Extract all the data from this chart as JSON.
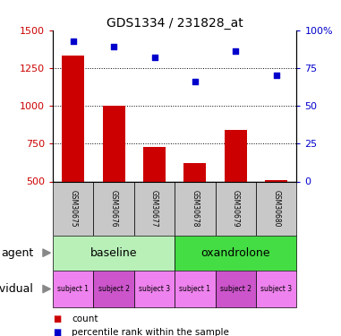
{
  "title": "GDS1334 / 231828_at",
  "samples": [
    "GSM30675",
    "GSM30676",
    "GSM30677",
    "GSM30678",
    "GSM30679",
    "GSM30680"
  ],
  "bar_values": [
    1330,
    1000,
    730,
    620,
    840,
    510
  ],
  "scatter_values": [
    93,
    89,
    82,
    66,
    86,
    70
  ],
  "bar_color": "#cc0000",
  "scatter_color": "#0000cc",
  "ylim_left": [
    500,
    1500
  ],
  "ylim_right": [
    0,
    100
  ],
  "yticks_left": [
    500,
    750,
    1000,
    1250,
    1500
  ],
  "yticks_right": [
    0,
    25,
    50,
    75,
    100
  ],
  "grid_values": [
    750,
    1000,
    1250
  ],
  "agent_groups": [
    {
      "label": "baseline",
      "start": 0,
      "end": 3,
      "color": "#b8f0b8"
    },
    {
      "label": "oxandrolone",
      "start": 3,
      "end": 6,
      "color": "#44dd44"
    }
  ],
  "agent_label": "agent",
  "individual_label": "individual",
  "legend_count_label": "count",
  "legend_pct_label": "percentile rank within the sample",
  "bar_bottom": 500,
  "ind_colors": [
    "#ee82ee",
    "#cc55cc",
    "#ee82ee",
    "#ee82ee",
    "#cc55cc",
    "#ee82ee"
  ],
  "ind_labels": [
    "subject 1",
    "subject 2",
    "subject 3",
    "subject 1",
    "subject 2",
    "subject 3"
  ],
  "sample_color": "#c8c8c8"
}
